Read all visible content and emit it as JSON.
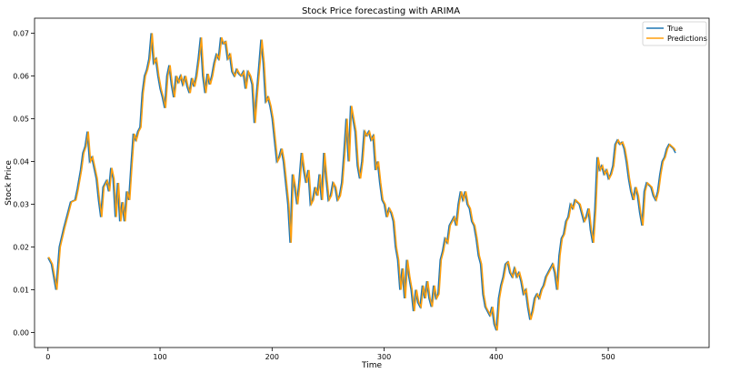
{
  "chart_data": {
    "type": "line",
    "title": "Stock Price forecasting with ARIMA",
    "xlabel": "Time",
    "ylabel": "Stock Price",
    "xlim": [
      -12,
      590
    ],
    "ylim": [
      -0.0035,
      0.0735
    ],
    "xticks": [
      0,
      100,
      200,
      300,
      400,
      500
    ],
    "yticks": [
      0.0,
      0.01,
      0.02,
      0.03,
      0.04,
      0.05,
      0.06,
      0.07
    ],
    "ytick_labels": [
      "0.00",
      "0.01",
      "0.02",
      "0.03",
      "0.04",
      "0.05",
      "0.06",
      "0.07"
    ],
    "grid": false,
    "legend_position": "top-right",
    "legend": [
      {
        "label": "True",
        "color": "#1f77b4"
      },
      {
        "label": "Predictions",
        "color": "#ff9f0e"
      }
    ],
    "keypoints": [
      [
        0,
        0.0175
      ],
      [
        3,
        0.016
      ],
      [
        7,
        0.01
      ],
      [
        10,
        0.02
      ],
      [
        14,
        0.0245
      ],
      [
        17,
        0.0275
      ],
      [
        20,
        0.0305
      ],
      [
        24,
        0.031
      ],
      [
        26,
        0.0335
      ],
      [
        29,
        0.038
      ],
      [
        31,
        0.042
      ],
      [
        33,
        0.0435
      ],
      [
        35,
        0.047
      ],
      [
        37,
        0.04
      ],
      [
        39,
        0.041
      ],
      [
        41,
        0.0385
      ],
      [
        43,
        0.036
      ],
      [
        45,
        0.031
      ],
      [
        47,
        0.027
      ],
      [
        49,
        0.034
      ],
      [
        52,
        0.0355
      ],
      [
        54,
        0.033
      ],
      [
        56,
        0.0385
      ],
      [
        58,
        0.036
      ],
      [
        60,
        0.027
      ],
      [
        62,
        0.035
      ],
      [
        64,
        0.026
      ],
      [
        66,
        0.0305
      ],
      [
        68,
        0.026
      ],
      [
        70,
        0.033
      ],
      [
        72,
        0.031
      ],
      [
        74,
        0.039
      ],
      [
        76,
        0.0465
      ],
      [
        78,
        0.045
      ],
      [
        80,
        0.047
      ],
      [
        82,
        0.048
      ],
      [
        84,
        0.056
      ],
      [
        86,
        0.06
      ],
      [
        88,
        0.0615
      ],
      [
        90,
        0.064
      ],
      [
        92,
        0.07
      ],
      [
        94,
        0.063
      ],
      [
        96,
        0.064
      ],
      [
        98,
        0.06
      ],
      [
        100,
        0.057
      ],
      [
        102,
        0.055
      ],
      [
        104,
        0.0525
      ],
      [
        106,
        0.06
      ],
      [
        108,
        0.0625
      ],
      [
        110,
        0.058
      ],
      [
        112,
        0.055
      ],
      [
        114,
        0.06
      ],
      [
        116,
        0.0585
      ],
      [
        118,
        0.06
      ],
      [
        120,
        0.058
      ],
      [
        122,
        0.06
      ],
      [
        124,
        0.0575
      ],
      [
        126,
        0.056
      ],
      [
        128,
        0.0595
      ],
      [
        130,
        0.0575
      ],
      [
        132,
        0.06
      ],
      [
        134,
        0.064
      ],
      [
        136,
        0.069
      ],
      [
        138,
        0.06
      ],
      [
        140,
        0.056
      ],
      [
        142,
        0.0605
      ],
      [
        144,
        0.058
      ],
      [
        146,
        0.06
      ],
      [
        148,
        0.063
      ],
      [
        150,
        0.065
      ],
      [
        152,
        0.064
      ],
      [
        154,
        0.069
      ],
      [
        156,
        0.0675
      ],
      [
        158,
        0.068
      ],
      [
        160,
        0.064
      ],
      [
        162,
        0.065
      ],
      [
        164,
        0.061
      ],
      [
        166,
        0.06
      ],
      [
        168,
        0.0615
      ],
      [
        170,
        0.0605
      ],
      [
        172,
        0.06
      ],
      [
        174,
        0.061
      ],
      [
        176,
        0.057
      ],
      [
        178,
        0.061
      ],
      [
        180,
        0.06
      ],
      [
        182,
        0.058
      ],
      [
        184,
        0.049
      ],
      [
        186,
        0.056
      ],
      [
        188,
        0.062
      ],
      [
        190,
        0.0685
      ],
      [
        192,
        0.063
      ],
      [
        194,
        0.054
      ],
      [
        196,
        0.055
      ],
      [
        198,
        0.053
      ],
      [
        200,
        0.05
      ],
      [
        202,
        0.045
      ],
      [
        204,
        0.04
      ],
      [
        206,
        0.041
      ],
      [
        208,
        0.043
      ],
      [
        210,
        0.04
      ],
      [
        212,
        0.035
      ],
      [
        214,
        0.03
      ],
      [
        216,
        0.021
      ],
      [
        218,
        0.037
      ],
      [
        220,
        0.034
      ],
      [
        222,
        0.03
      ],
      [
        224,
        0.0355
      ],
      [
        226,
        0.042
      ],
      [
        228,
        0.038
      ],
      [
        230,
        0.035
      ],
      [
        232,
        0.038
      ],
      [
        234,
        0.03
      ],
      [
        236,
        0.031
      ],
      [
        238,
        0.034
      ],
      [
        240,
        0.032
      ],
      [
        242,
        0.037
      ],
      [
        244,
        0.031
      ],
      [
        246,
        0.042
      ],
      [
        248,
        0.036
      ],
      [
        250,
        0.031
      ],
      [
        252,
        0.032
      ],
      [
        254,
        0.035
      ],
      [
        256,
        0.034
      ],
      [
        258,
        0.031
      ],
      [
        260,
        0.032
      ],
      [
        262,
        0.035
      ],
      [
        264,
        0.042
      ],
      [
        266,
        0.05
      ],
      [
        268,
        0.04
      ],
      [
        270,
        0.053
      ],
      [
        272,
        0.05
      ],
      [
        274,
        0.047
      ],
      [
        276,
        0.039
      ],
      [
        278,
        0.036
      ],
      [
        280,
        0.04
      ],
      [
        282,
        0.047
      ],
      [
        284,
        0.046
      ],
      [
        286,
        0.047
      ],
      [
        288,
        0.045
      ],
      [
        290,
        0.046
      ],
      [
        292,
        0.038
      ],
      [
        294,
        0.04
      ],
      [
        296,
        0.035
      ],
      [
        298,
        0.031
      ],
      [
        300,
        0.03
      ],
      [
        302,
        0.027
      ],
      [
        304,
        0.029
      ],
      [
        306,
        0.028
      ],
      [
        308,
        0.026
      ],
      [
        310,
        0.02
      ],
      [
        312,
        0.017
      ],
      [
        314,
        0.01
      ],
      [
        316,
        0.015
      ],
      [
        318,
        0.008
      ],
      [
        320,
        0.017
      ],
      [
        322,
        0.013
      ],
      [
        324,
        0.01
      ],
      [
        326,
        0.005
      ],
      [
        328,
        0.01
      ],
      [
        330,
        0.007
      ],
      [
        332,
        0.006
      ],
      [
        334,
        0.011
      ],
      [
        336,
        0.008
      ],
      [
        338,
        0.012
      ],
      [
        340,
        0.008
      ],
      [
        342,
        0.006
      ],
      [
        344,
        0.011
      ],
      [
        346,
        0.008
      ],
      [
        348,
        0.009
      ],
      [
        350,
        0.017
      ],
      [
        352,
        0.019
      ],
      [
        354,
        0.022
      ],
      [
        356,
        0.021
      ],
      [
        358,
        0.025
      ],
      [
        360,
        0.026
      ],
      [
        362,
        0.027
      ],
      [
        364,
        0.025
      ],
      [
        366,
        0.03
      ],
      [
        368,
        0.033
      ],
      [
        370,
        0.031
      ],
      [
        372,
        0.033
      ],
      [
        374,
        0.03
      ],
      [
        376,
        0.029
      ],
      [
        378,
        0.026
      ],
      [
        380,
        0.025
      ],
      [
        382,
        0.022
      ],
      [
        384,
        0.018
      ],
      [
        386,
        0.016
      ],
      [
        388,
        0.009
      ],
      [
        390,
        0.006
      ],
      [
        392,
        0.005
      ],
      [
        394,
        0.004
      ],
      [
        396,
        0.006
      ],
      [
        398,
        0.002
      ],
      [
        400,
        0.0005
      ],
      [
        402,
        0.008
      ],
      [
        404,
        0.011
      ],
      [
        406,
        0.013
      ],
      [
        408,
        0.016
      ],
      [
        410,
        0.0165
      ],
      [
        412,
        0.014
      ],
      [
        414,
        0.013
      ],
      [
        416,
        0.015
      ],
      [
        418,
        0.013
      ],
      [
        420,
        0.014
      ],
      [
        422,
        0.012
      ],
      [
        424,
        0.009
      ],
      [
        426,
        0.01
      ],
      [
        428,
        0.006
      ],
      [
        430,
        0.003
      ],
      [
        432,
        0.005
      ],
      [
        434,
        0.008
      ],
      [
        436,
        0.009
      ],
      [
        438,
        0.008
      ],
      [
        440,
        0.01
      ],
      [
        442,
        0.011
      ],
      [
        444,
        0.013
      ],
      [
        446,
        0.014
      ],
      [
        448,
        0.015
      ],
      [
        450,
        0.016
      ],
      [
        452,
        0.014
      ],
      [
        454,
        0.01
      ],
      [
        456,
        0.018
      ],
      [
        458,
        0.022
      ],
      [
        460,
        0.023
      ],
      [
        462,
        0.026
      ],
      [
        464,
        0.027
      ],
      [
        466,
        0.03
      ],
      [
        468,
        0.029
      ],
      [
        470,
        0.031
      ],
      [
        472,
        0.0305
      ],
      [
        474,
        0.03
      ],
      [
        476,
        0.028
      ],
      [
        478,
        0.026
      ],
      [
        480,
        0.027
      ],
      [
        482,
        0.029
      ],
      [
        484,
        0.024
      ],
      [
        486,
        0.021
      ],
      [
        488,
        0.029
      ],
      [
        490,
        0.041
      ],
      [
        492,
        0.038
      ],
      [
        494,
        0.039
      ],
      [
        496,
        0.037
      ],
      [
        498,
        0.038
      ],
      [
        500,
        0.036
      ],
      [
        502,
        0.037
      ],
      [
        504,
        0.039
      ],
      [
        506,
        0.044
      ],
      [
        508,
        0.045
      ],
      [
        510,
        0.044
      ],
      [
        512,
        0.0445
      ],
      [
        514,
        0.043
      ],
      [
        516,
        0.04
      ],
      [
        518,
        0.036
      ],
      [
        520,
        0.033
      ],
      [
        522,
        0.031
      ],
      [
        524,
        0.034
      ],
      [
        526,
        0.032
      ],
      [
        528,
        0.028
      ],
      [
        530,
        0.025
      ],
      [
        532,
        0.033
      ],
      [
        534,
        0.035
      ],
      [
        536,
        0.0345
      ],
      [
        538,
        0.034
      ],
      [
        540,
        0.032
      ],
      [
        542,
        0.031
      ],
      [
        544,
        0.033
      ],
      [
        546,
        0.037
      ],
      [
        548,
        0.04
      ],
      [
        550,
        0.041
      ],
      [
        552,
        0.043
      ],
      [
        554,
        0.044
      ],
      [
        556,
        0.0435
      ],
      [
        558,
        0.043
      ],
      [
        560,
        0.042
      ]
    ],
    "prediction_lag": 1
  }
}
